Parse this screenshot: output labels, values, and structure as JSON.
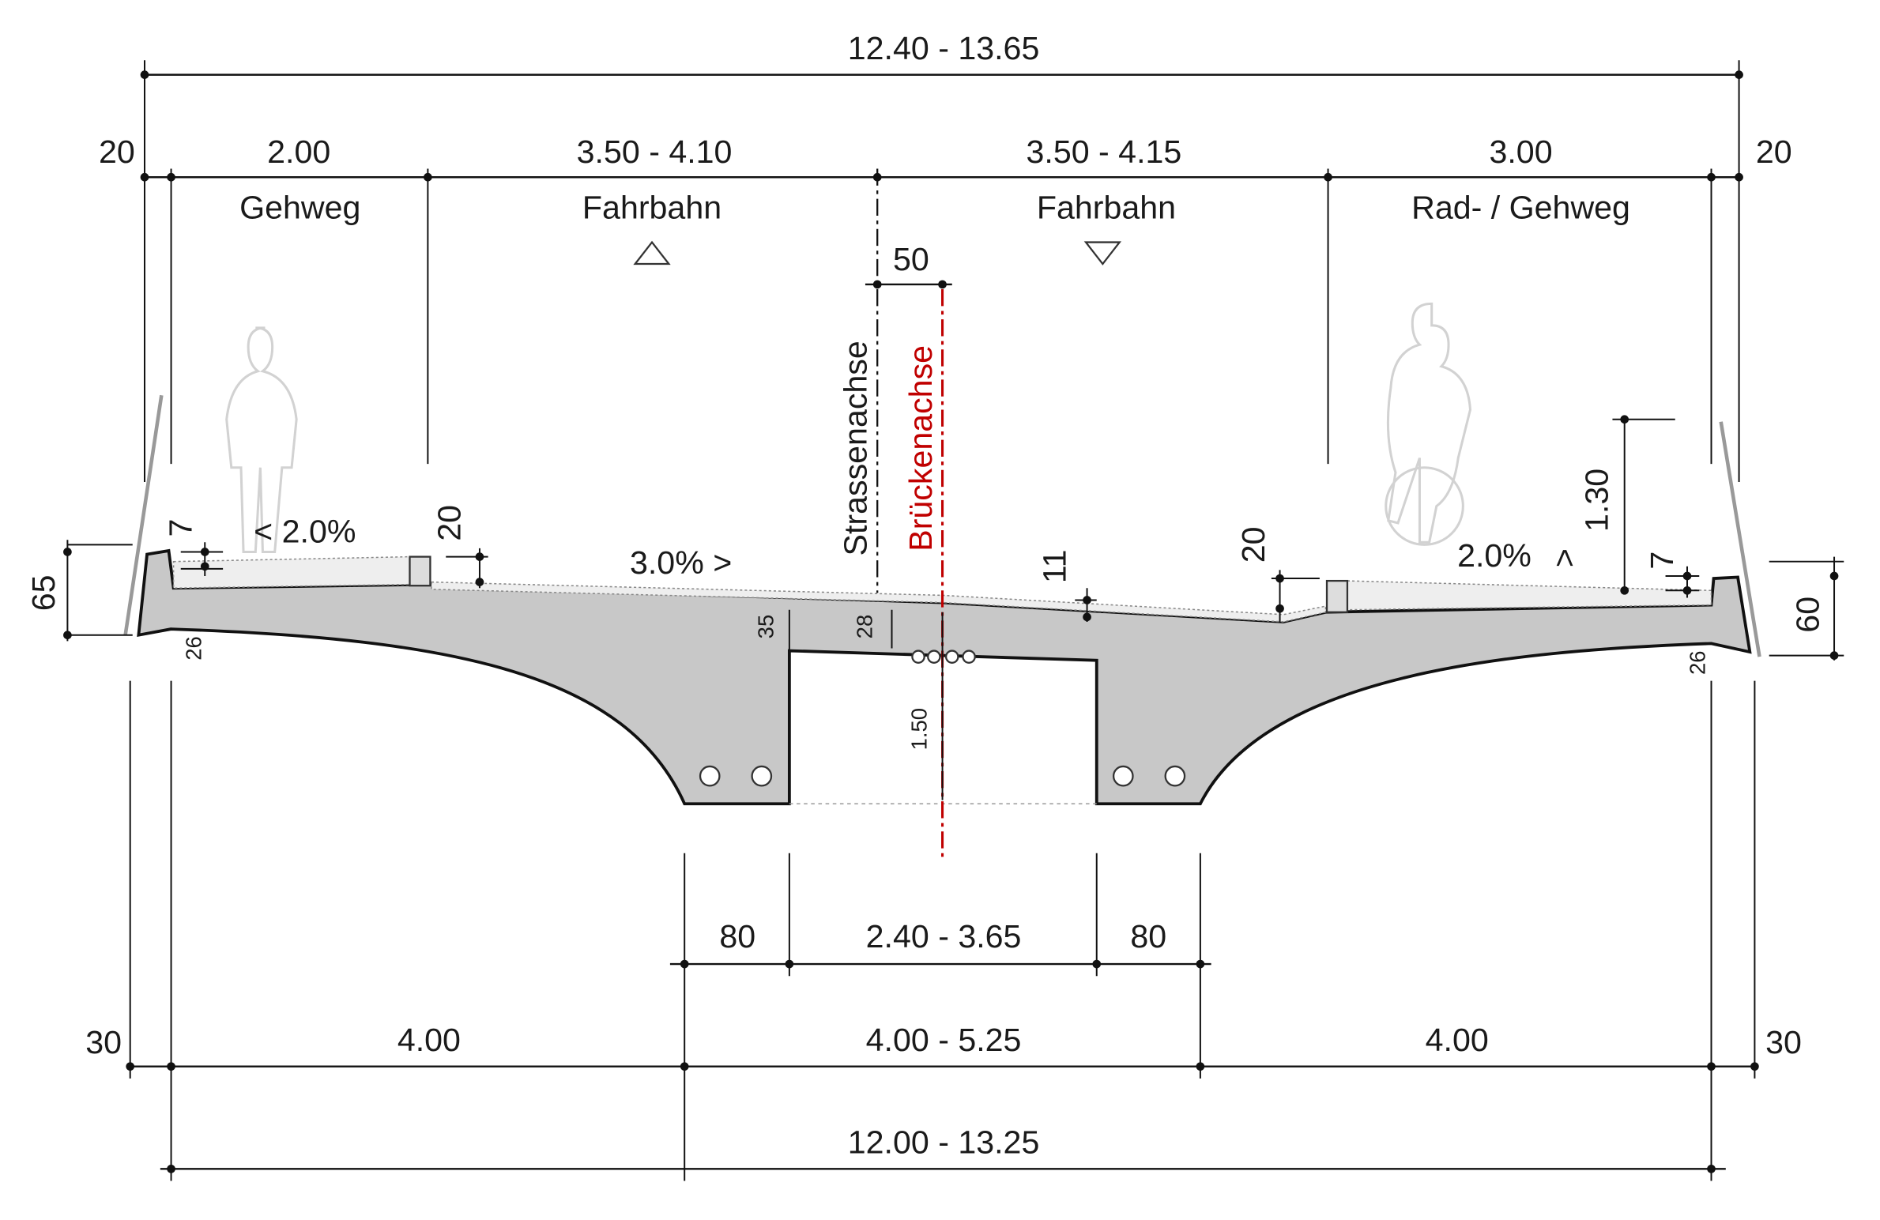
{
  "dimensions": {
    "top_total": "12.40 - 13.65",
    "top_left_edge": "20",
    "gehweg_width": "2.00",
    "lane_left_width": "3.50 - 4.10",
    "lane_right_width": "3.50 - 4.15",
    "rad_gehweg_width": "3.00",
    "top_right_edge": "20",
    "axis_offset": "50",
    "left_curb_height": "7",
    "left_curb_step": "20",
    "center_depth": "11",
    "right_curb_step": "20",
    "railing_height": "1.30",
    "right_curb_height": "7",
    "left_edge_height": "65",
    "right_edge_height": "60",
    "left_slab": "26",
    "void_depth_35": "35",
    "void_depth_28": "28",
    "girder_depth": "1.50",
    "right_slab": "26",
    "web_left": "80",
    "web_gap": "2.40 - 3.65",
    "web_right": "80",
    "bottom_left_edge": "30",
    "bottom_left": "4.00",
    "bottom_center": "4.00 - 5.25",
    "bottom_right": "4.00",
    "bottom_right_edge": "30",
    "bottom_total": "12.00 - 13.25"
  },
  "zones": {
    "gehweg": "Gehweg",
    "lane_left": "Fahrbahn",
    "lane_right": "Fahrbahn",
    "rad_gehweg": "Rad- / Gehweg"
  },
  "axes": {
    "road": "Strassenachse",
    "bridge": "Brückenachse"
  },
  "slopes": {
    "left_walk": "< 2.0%",
    "road": "3.0% >",
    "right_walk": "2.0%",
    "right_walk_arrow": ">"
  }
}
